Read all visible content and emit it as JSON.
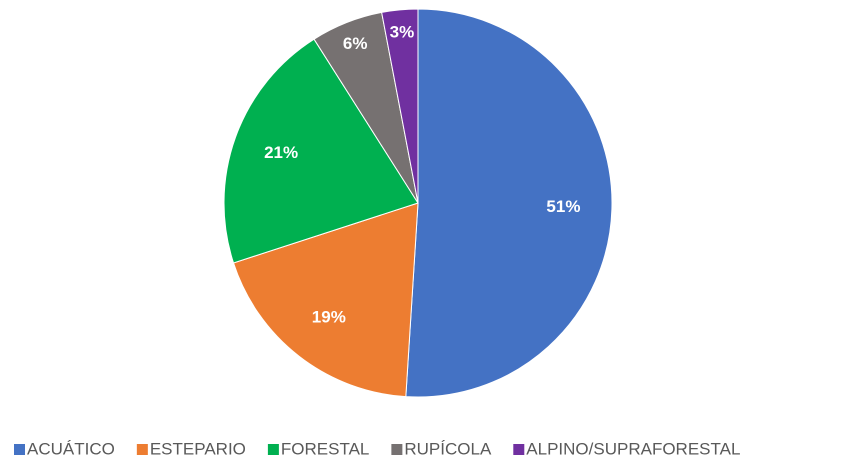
{
  "chart_data": {
    "type": "pie",
    "categories": [
      "ACUÁTICO",
      "ESTEPARIO",
      "FORESTAL",
      "RUPÍCOLA",
      "ALPINO/SUPRAFORESTAL"
    ],
    "values": [
      51,
      19,
      21,
      6,
      3
    ],
    "value_labels": [
      "51%",
      "19%",
      "21%",
      "6%",
      "3%"
    ],
    "colors": [
      "#4472c4",
      "#ed7d31",
      "#00b050",
      "#767171",
      "#7030a0"
    ],
    "legend": "bottom"
  }
}
